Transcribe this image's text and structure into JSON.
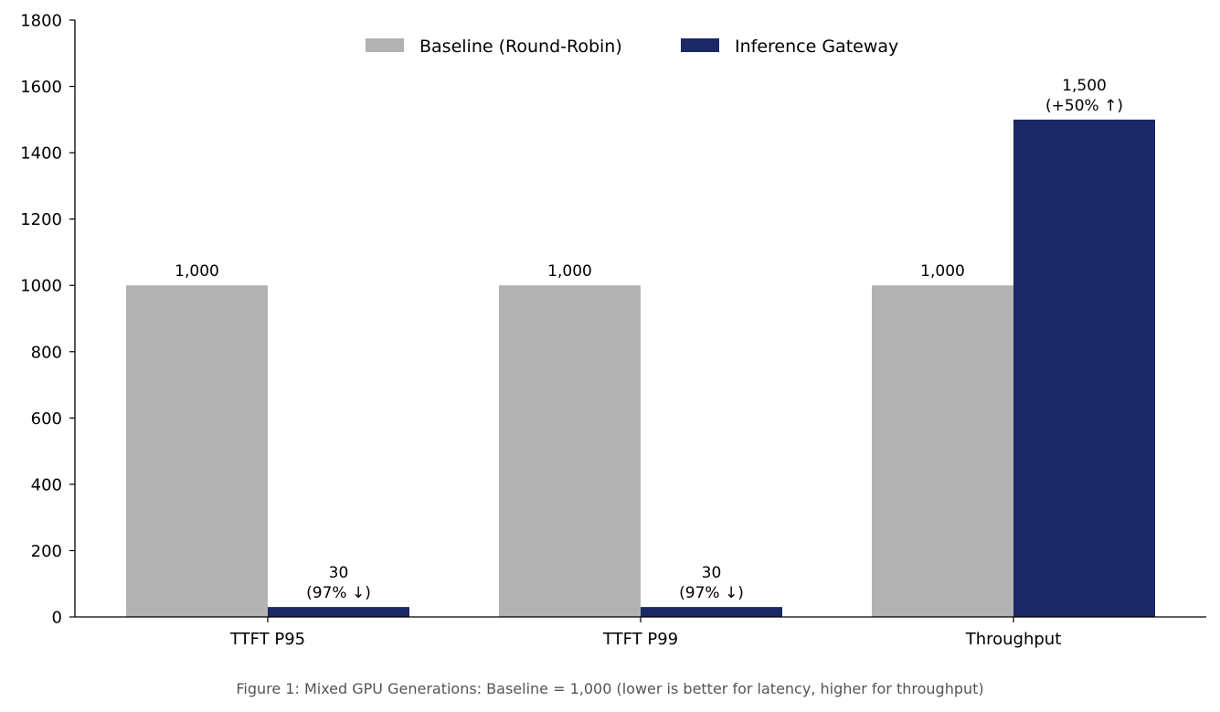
{
  "chart_data": {
    "type": "bar",
    "categories": [
      "TTFT P95",
      "TTFT P99",
      "Throughput"
    ],
    "series": [
      {
        "name": "Baseline (Round-Robin)",
        "values": [
          1000,
          1000,
          1000
        ],
        "color": "#b2b2b2",
        "labels": [
          [
            "1,000"
          ],
          [
            "1,000"
          ],
          [
            "1,000"
          ]
        ]
      },
      {
        "name": "Inference Gateway",
        "values": [
          30,
          30,
          1500
        ],
        "color": "#1b2966",
        "labels": [
          [
            "30",
            "(97% ↓)"
          ],
          [
            "30",
            "(97% ↓)"
          ],
          [
            "1,500",
            "(+50% ↑)"
          ]
        ]
      }
    ],
    "ylim": [
      0,
      1800
    ],
    "yticks": [
      0,
      200,
      400,
      600,
      800,
      1000,
      1200,
      1400,
      1600,
      1800
    ],
    "title": "",
    "xlabel": "",
    "ylabel": "",
    "legend_position": "top-center",
    "grid": false
  },
  "caption": "Figure 1: Mixed GPU Generations: Baseline = 1,000 (lower is better for latency, higher for throughput)"
}
